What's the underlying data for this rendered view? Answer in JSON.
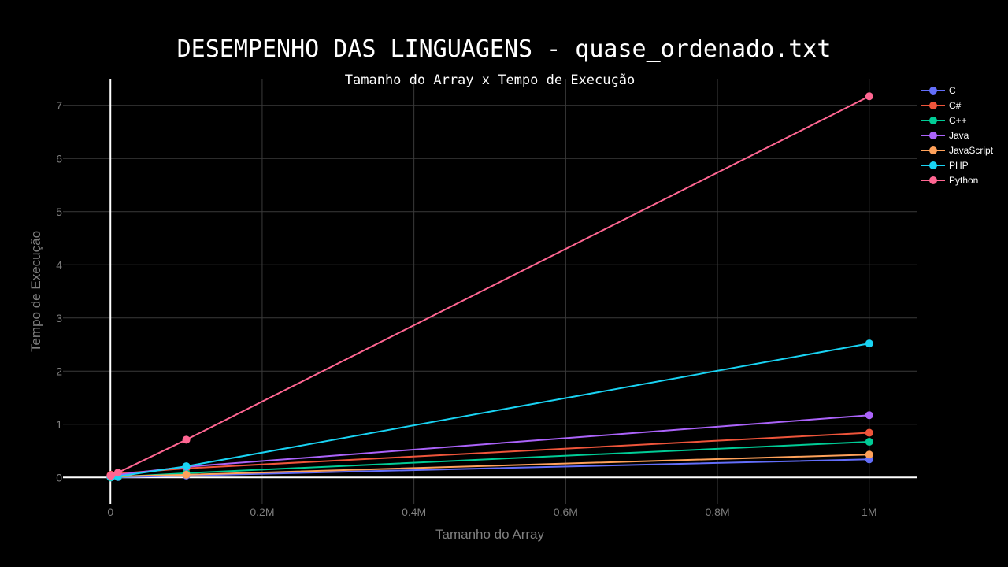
{
  "chart_data": {
    "type": "line",
    "title": "DESEMPENHO DAS LINGUAGENS - quase_ordenado.txt",
    "subtitle": "Tamanho do Array x Tempo de Execução",
    "xlabel": "Tamanho do Array",
    "ylabel": "Tempo de Execução",
    "xlim": [
      -62500,
      1062500
    ],
    "ylim": [
      -0.5,
      7.5
    ],
    "x_ticks": [
      {
        "value": 0,
        "label": "0"
      },
      {
        "value": 200000,
        "label": "0.2M"
      },
      {
        "value": 400000,
        "label": "0.4M"
      },
      {
        "value": 600000,
        "label": "0.6M"
      },
      {
        "value": 800000,
        "label": "0.8M"
      },
      {
        "value": 1000000,
        "label": "1M"
      }
    ],
    "y_ticks": [
      {
        "value": 0,
        "label": "0"
      },
      {
        "value": 1,
        "label": "1"
      },
      {
        "value": 2,
        "label": "2"
      },
      {
        "value": 3,
        "label": "3"
      },
      {
        "value": 4,
        "label": "4"
      },
      {
        "value": 5,
        "label": "5"
      },
      {
        "value": 6,
        "label": "6"
      },
      {
        "value": 7,
        "label": "7"
      }
    ],
    "grid": true,
    "legend_position": "top-right",
    "series": [
      {
        "name": "C",
        "color": "#636efa",
        "x": [
          100,
          1000,
          10000,
          100000,
          1000000
        ],
        "y": [
          0.0,
          0.001,
          0.004,
          0.035,
          0.34
        ]
      },
      {
        "name": "C#",
        "color": "#ef553b",
        "x": [
          100,
          1000,
          10000,
          100000,
          1000000
        ],
        "y": [
          0.04,
          0.05,
          0.07,
          0.17,
          0.84
        ]
      },
      {
        "name": "C++",
        "color": "#00cc96",
        "x": [
          100,
          1000,
          10000,
          100000,
          1000000
        ],
        "y": [
          0.0,
          0.002,
          0.01,
          0.08,
          0.67
        ]
      },
      {
        "name": "Java",
        "color": "#ab63fa",
        "x": [
          100,
          1000,
          10000,
          100000,
          1000000
        ],
        "y": [
          0.02,
          0.03,
          0.05,
          0.2,
          1.17
        ]
      },
      {
        "name": "JavaScript",
        "color": "#ffa15a",
        "x": [
          100,
          1000,
          10000,
          100000,
          1000000
        ],
        "y": [
          0.02,
          0.02,
          0.02,
          0.05,
          0.43
        ]
      },
      {
        "name": "PHP",
        "color": "#19d3f3",
        "x": [
          100,
          1000,
          10000,
          100000,
          1000000
        ],
        "y": [
          0.01,
          0.01,
          0.02,
          0.21,
          2.52
        ]
      },
      {
        "name": "Python",
        "color": "#ff6692",
        "x": [
          100,
          1000,
          10000,
          100000,
          1000000
        ],
        "y": [
          0.03,
          0.04,
          0.09,
          0.71,
          7.17
        ]
      }
    ]
  }
}
